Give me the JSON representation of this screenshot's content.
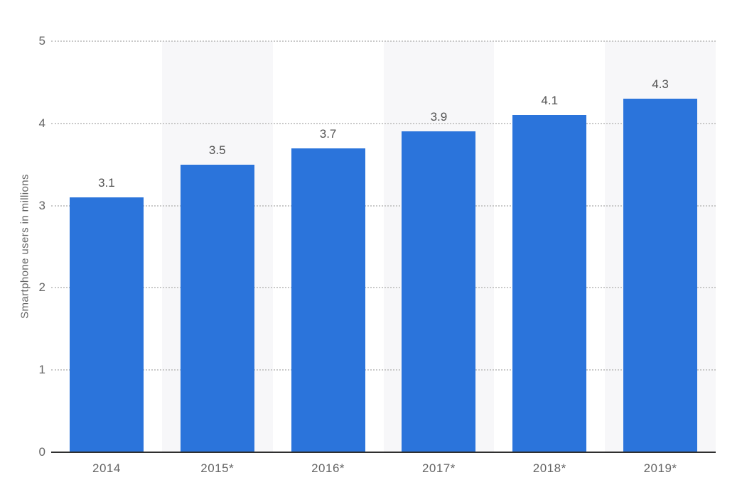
{
  "chart_data": {
    "type": "bar",
    "title": "",
    "xlabel": "",
    "ylabel": "Smartphone users in millions",
    "categories": [
      "2014",
      "2015*",
      "2016*",
      "2017*",
      "2018*",
      "2019*"
    ],
    "values": [
      3.1,
      3.5,
      3.7,
      3.9,
      4.1,
      4.3
    ],
    "value_labels": [
      "3.1",
      "3.5",
      "3.7",
      "3.9",
      "4.1",
      "4.3"
    ],
    "ylim": [
      0,
      5
    ],
    "yticks": [
      0,
      1,
      2,
      3,
      4,
      5
    ],
    "grid": "horizontal-dotted",
    "legend": "none",
    "colors": {
      "bar": "#2b74db",
      "column_stripe": "#f7f7f9",
      "gridline": "#c9c9c9",
      "axis_line": "#2f2f2f",
      "axis_text": "#666666",
      "value_label_text": "#525252",
      "background": "#ffffff"
    }
  }
}
